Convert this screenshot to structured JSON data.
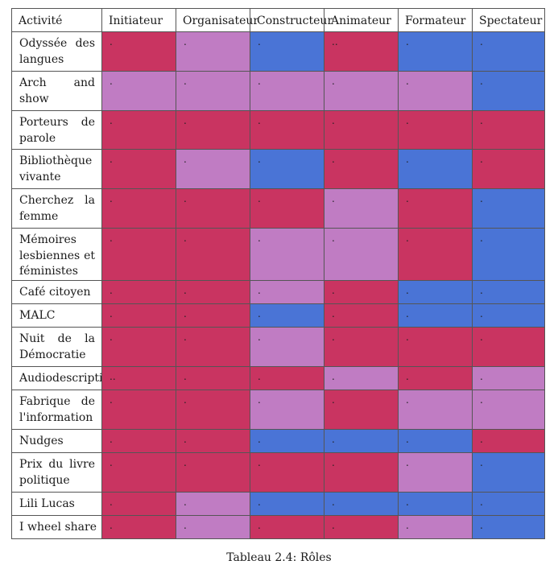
{
  "table": {
    "headers": [
      "Activité",
      "Initiateur",
      "Organisateur",
      "Constructeur",
      "Animateur",
      "Formateur",
      "Spectateur"
    ],
    "colors": {
      "red": "#c93461",
      "mauve": "#c07cc3",
      "blue": "#4a74d6"
    },
    "rows": [
      {
        "name": "Odyssée des langues",
        "cells": [
          [
            "red",
            "."
          ],
          [
            "mauve",
            "."
          ],
          [
            "blue",
            "."
          ],
          [
            "red",
            ".."
          ],
          [
            "blue",
            "."
          ],
          [
            "blue",
            "."
          ]
        ]
      },
      {
        "name": "Arch and show",
        "cells": [
          [
            "mauve",
            "."
          ],
          [
            "mauve",
            "."
          ],
          [
            "mauve",
            "."
          ],
          [
            "mauve",
            "."
          ],
          [
            "mauve",
            "."
          ],
          [
            "blue",
            "."
          ]
        ]
      },
      {
        "name": "Porteurs de parole",
        "cells": [
          [
            "red",
            "."
          ],
          [
            "red",
            "."
          ],
          [
            "red",
            "."
          ],
          [
            "red",
            "."
          ],
          [
            "red",
            "."
          ],
          [
            "red",
            "."
          ]
        ]
      },
      {
        "name": "Bibliothèque vivante",
        "cells": [
          [
            "red",
            "."
          ],
          [
            "mauve",
            "."
          ],
          [
            "blue",
            "."
          ],
          [
            "red",
            "."
          ],
          [
            "blue",
            "."
          ],
          [
            "red",
            "."
          ]
        ]
      },
      {
        "name": "Cherchez la femme",
        "cells": [
          [
            "red",
            "."
          ],
          [
            "red",
            "."
          ],
          [
            "red",
            "."
          ],
          [
            "mauve",
            "."
          ],
          [
            "red",
            "."
          ],
          [
            "blue",
            "."
          ]
        ]
      },
      {
        "name": "Mémoires lesbiennes et féministes",
        "cells": [
          [
            "red",
            "."
          ],
          [
            "red",
            "."
          ],
          [
            "mauve",
            "."
          ],
          [
            "mauve",
            "."
          ],
          [
            "red",
            "."
          ],
          [
            "blue",
            "."
          ]
        ]
      },
      {
        "name": "Café citoyen",
        "cells": [
          [
            "red",
            "."
          ],
          [
            "red",
            "."
          ],
          [
            "mauve",
            "."
          ],
          [
            "red",
            "."
          ],
          [
            "blue",
            "."
          ],
          [
            "blue",
            "."
          ]
        ]
      },
      {
        "name": "MALC",
        "cells": [
          [
            "red",
            "."
          ],
          [
            "red",
            "."
          ],
          [
            "blue",
            "."
          ],
          [
            "red",
            "."
          ],
          [
            "blue",
            "."
          ],
          [
            "blue",
            "."
          ]
        ]
      },
      {
        "name": "Nuit de la Démocratie",
        "cells": [
          [
            "red",
            "."
          ],
          [
            "red",
            "."
          ],
          [
            "mauve",
            "."
          ],
          [
            "red",
            "."
          ],
          [
            "red",
            "."
          ],
          [
            "red",
            "."
          ]
        ]
      },
      {
        "name": "Audiodescription",
        "cells": [
          [
            "red",
            ".."
          ],
          [
            "red",
            "."
          ],
          [
            "red",
            "."
          ],
          [
            "mauve",
            "."
          ],
          [
            "red",
            "."
          ],
          [
            "mauve",
            "."
          ]
        ]
      },
      {
        "name": "Fabrique de l'information",
        "cells": [
          [
            "red",
            "."
          ],
          [
            "red",
            "."
          ],
          [
            "mauve",
            "."
          ],
          [
            "red",
            "."
          ],
          [
            "mauve",
            "."
          ],
          [
            "mauve",
            "."
          ]
        ]
      },
      {
        "name": "Nudges",
        "cells": [
          [
            "red",
            "."
          ],
          [
            "red",
            "."
          ],
          [
            "blue",
            "."
          ],
          [
            "blue",
            "."
          ],
          [
            "blue",
            "."
          ],
          [
            "red",
            "."
          ]
        ]
      },
      {
        "name": "Prix du livre politique",
        "cells": [
          [
            "red",
            "."
          ],
          [
            "red",
            "."
          ],
          [
            "red",
            "."
          ],
          [
            "red",
            "."
          ],
          [
            "mauve",
            "."
          ],
          [
            "blue",
            "."
          ]
        ]
      },
      {
        "name": "Lili Lucas",
        "cells": [
          [
            "red",
            "."
          ],
          [
            "mauve",
            "."
          ],
          [
            "blue",
            "."
          ],
          [
            "blue",
            "."
          ],
          [
            "blue",
            "."
          ],
          [
            "blue",
            "."
          ]
        ]
      },
      {
        "name": "I wheel share",
        "cells": [
          [
            "red",
            "."
          ],
          [
            "mauve",
            "."
          ],
          [
            "red",
            "."
          ],
          [
            "red",
            "."
          ],
          [
            "mauve",
            "."
          ],
          [
            "blue",
            "."
          ]
        ]
      }
    ]
  },
  "caption": "Tableau 2.4: Rôles"
}
